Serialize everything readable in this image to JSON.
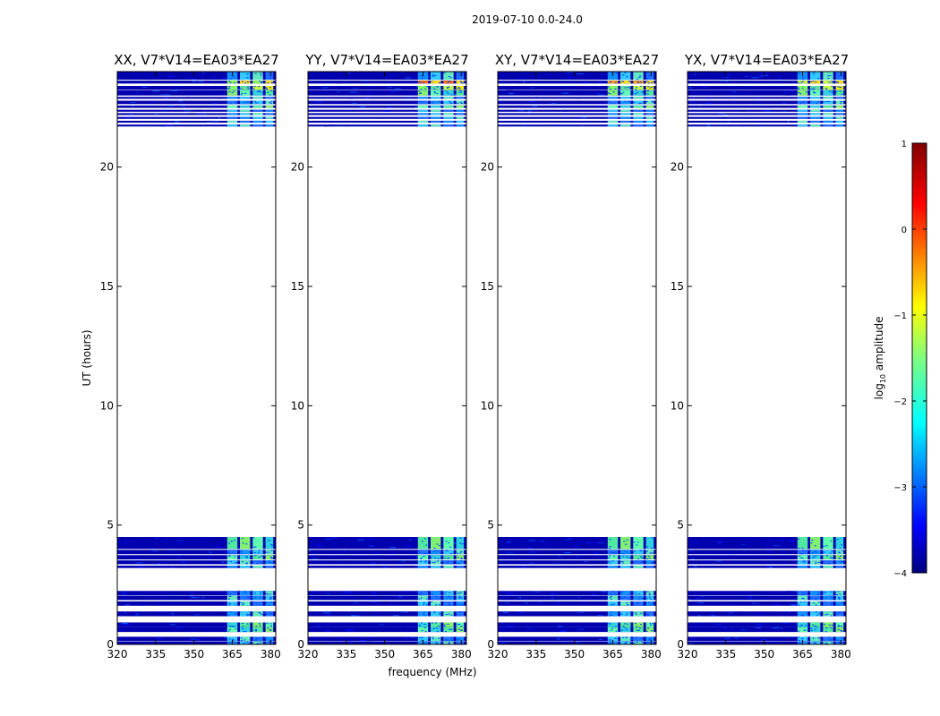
{
  "chart_data": {
    "type": "heatmap",
    "suptitle": "2019-07-10 0.0-24.0",
    "xlabel": "frequency (MHz)",
    "ylabel": "UT (hours)",
    "xlim": [
      320,
      382
    ],
    "ylim": [
      0,
      24
    ],
    "xticks": [
      320,
      335,
      350,
      365,
      380
    ],
    "yticks": [
      0,
      5,
      10,
      15,
      20
    ],
    "panels": [
      {
        "title": "XX, V7*V14=EA03*EA27",
        "strong_edge": "#88ff40"
      },
      {
        "title": "YY, V7*V14=EA03*EA27",
        "strong_edge": "#ff6a00"
      },
      {
        "title": "XY, V7*V14=EA03*EA27",
        "strong_edge": "#ffa000"
      },
      {
        "title": "YX, V7*V14=EA03*EA27",
        "strong_edge": "#c8ff30"
      }
    ],
    "data_blocks_ut": [
      [
        0.0,
        0.12,
        "low"
      ],
      [
        0.14,
        0.32,
        "low"
      ],
      [
        0.52,
        0.72,
        "mid"
      ],
      [
        0.72,
        0.92,
        "mid"
      ],
      [
        1.18,
        1.38,
        "low"
      ],
      [
        1.62,
        1.8,
        "low"
      ],
      [
        1.86,
        2.04,
        "low"
      ],
      [
        2.06,
        2.24,
        "low"
      ],
      [
        3.2,
        3.3,
        "low"
      ],
      [
        3.36,
        3.52,
        "low"
      ],
      [
        3.56,
        3.74,
        "mid"
      ],
      [
        3.78,
        3.96,
        "low"
      ],
      [
        4.0,
        4.5,
        "mid"
      ],
      [
        21.7,
        21.78,
        "low"
      ],
      [
        21.86,
        21.94,
        "low"
      ],
      [
        22.02,
        22.1,
        "low"
      ],
      [
        22.18,
        22.26,
        "low"
      ],
      [
        22.32,
        22.4,
        "low"
      ],
      [
        22.48,
        22.58,
        "mid"
      ],
      [
        22.64,
        22.78,
        "low"
      ],
      [
        22.86,
        22.94,
        "low"
      ],
      [
        23.0,
        23.22,
        "mid"
      ],
      [
        23.24,
        23.4,
        "high"
      ],
      [
        23.5,
        23.62,
        "strong"
      ],
      [
        23.66,
        24.0,
        "low"
      ]
    ],
    "colorbar": {
      "label": "log10 amplitude",
      "range": [
        -4,
        1
      ],
      "ticks": [
        -4,
        -3,
        -2,
        -1,
        0,
        1
      ],
      "tick_labels": [
        "−4",
        "−3",
        "−2",
        "−1",
        "0",
        "1"
      ],
      "colormap": "jet"
    }
  }
}
